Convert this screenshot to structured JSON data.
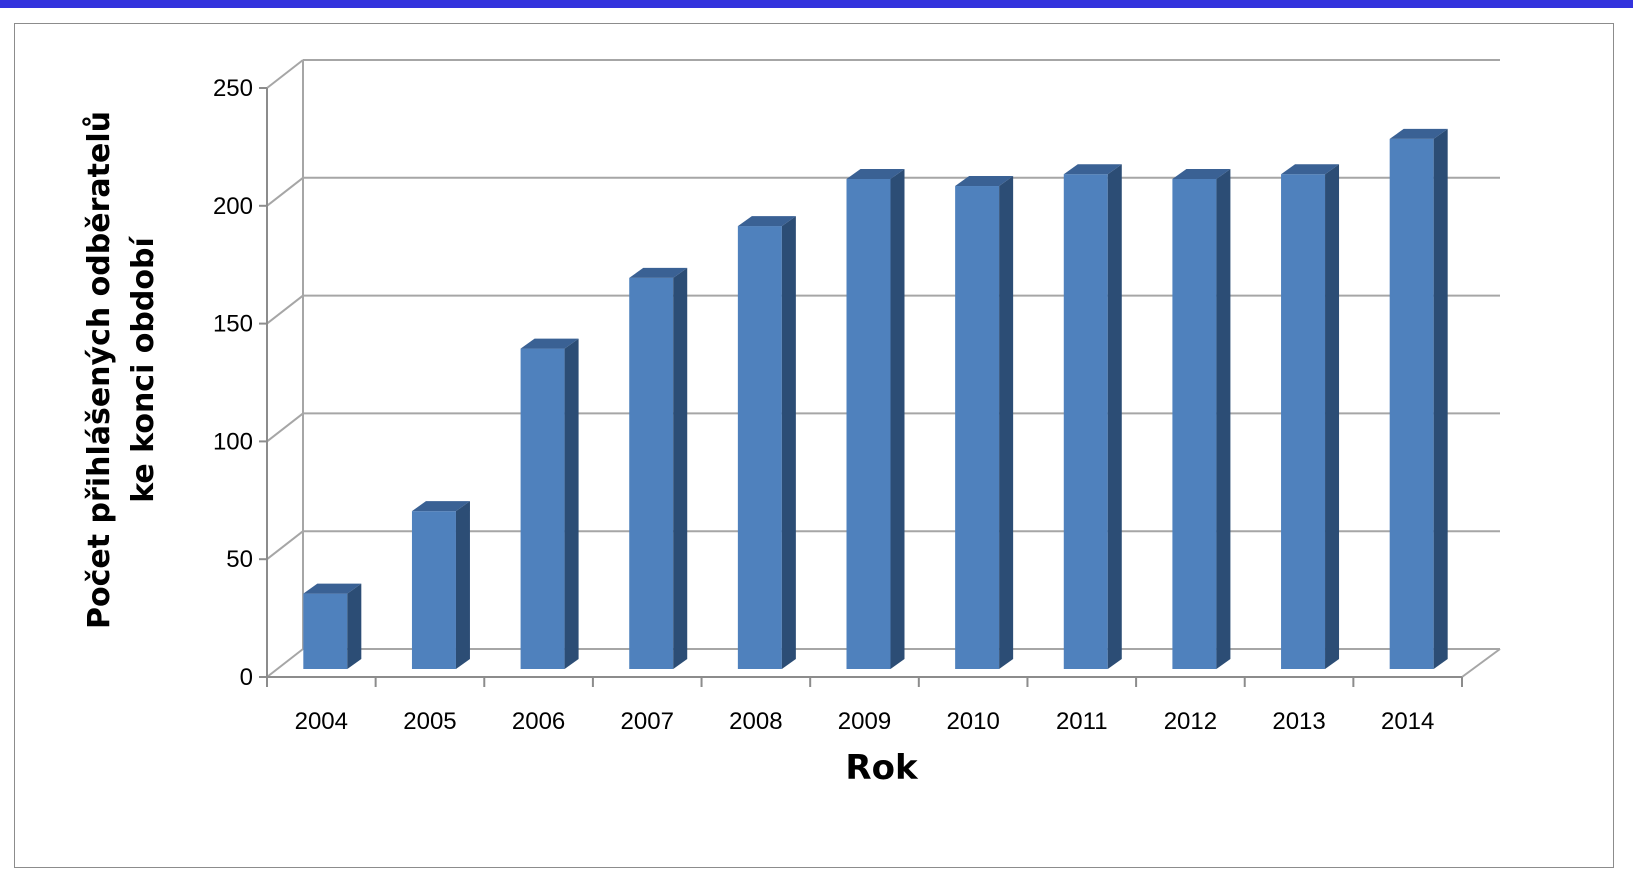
{
  "chart_data": {
    "type": "bar",
    "style": "3d-column",
    "categories": [
      "2004",
      "2005",
      "2006",
      "2007",
      "2008",
      "2009",
      "2010",
      "2011",
      "2012",
      "2013",
      "2014"
    ],
    "series": [
      {
        "values": [
          32,
          67,
          136,
          166,
          188,
          208,
          205,
          210,
          208,
          210,
          225
        ]
      }
    ],
    "title": "",
    "xlabel": "Rok",
    "ylabel_lines": [
      "Počet přihlášených odběratelů",
      "ke konci období"
    ],
    "ylim": [
      0,
      250
    ],
    "yticks": [
      "0",
      "50",
      "100",
      "150",
      "200",
      "250"
    ],
    "grid": true,
    "legend": "none",
    "colors": {
      "bar_front": "#4f81bd",
      "bar_side": "#2c4d75",
      "bar_top": "#3a6194",
      "grid": "#a6a6a6",
      "header_bar": "#3333dd"
    }
  }
}
